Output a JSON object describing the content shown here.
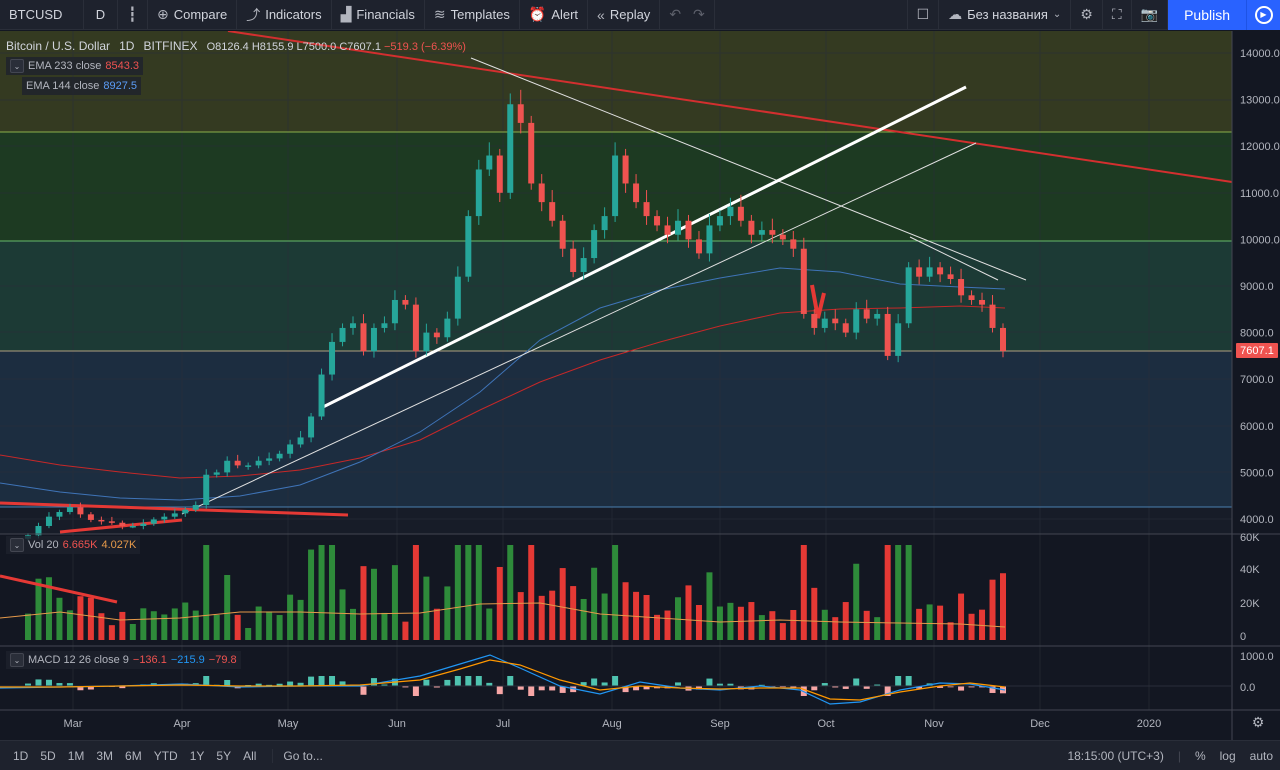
{
  "toolbar": {
    "symbol": "BTCUSD",
    "interval": "D",
    "compare": "Compare",
    "indicators": "Indicators",
    "financials": "Financials",
    "templates": "Templates",
    "alert": "Alert",
    "replay": "Replay",
    "layout_name": "Без названия",
    "publish": "Publish"
  },
  "legend": {
    "title": "Bitcoin / U.S. Dollar",
    "interval": "1D",
    "exchange": "BITFINEX",
    "open": "O8126.4",
    "high": "H8155.9",
    "low": "L7500.0",
    "close": "C7607.1",
    "change": "−519.3 (−6.39%)"
  },
  "indicators": {
    "ema233": {
      "label": "EMA 233 close",
      "value": "8543.3",
      "color": "#ef5350"
    },
    "ema144": {
      "label": "EMA 144 close",
      "value": "8927.5",
      "color": "#5b9cf6"
    },
    "vol": {
      "label": "Vol 20",
      "v1": "6.665K",
      "v2": "4.027K"
    },
    "macd": {
      "label": "MACD 12 26 close 9",
      "v1": "−136.1",
      "v2": "−215.9",
      "v3": "−79.8"
    }
  },
  "price_axis": [
    "14000.0",
    "13000.0",
    "12000.0",
    "11000.0",
    "10000.0",
    "9000.0",
    "8000.0",
    "7000.0",
    "6000.0",
    "5000.0",
    "4000.0"
  ],
  "last_price": "7607.1",
  "vol_axis": [
    "60K",
    "40K",
    "20K",
    "0"
  ],
  "macd_axis": [
    "1000.0",
    "0.0"
  ],
  "time_axis": [
    "Mar",
    "Apr",
    "May",
    "Jun",
    "Jul",
    "Aug",
    "Sep",
    "Oct",
    "Nov",
    "Dec",
    "2020"
  ],
  "bottom": {
    "ranges": [
      "1D",
      "5D",
      "1M",
      "3M",
      "6M",
      "YTD",
      "1Y",
      "5Y",
      "All"
    ],
    "goto": "Go to...",
    "time": "18:15:00 (UTC+3)",
    "percent": "%",
    "log": "log",
    "auto": "auto"
  },
  "colors": {
    "up": "#26a69a",
    "down": "#ef5350",
    "vol_up": "#26a69a",
    "vol_down": "#ef5350",
    "bg": "#131722",
    "accent": "#2962ff"
  },
  "chart_data": {
    "type": "candlestick",
    "series": [
      {
        "name": "BTCUSD",
        "close": [
          3650,
          3850,
          4050,
          4150,
          4250,
          4100,
          3980,
          3950,
          3920,
          3850,
          3850,
          3900,
          3990,
          4050,
          4120,
          4200,
          4300,
          4950,
          5000,
          5250,
          5150,
          5150,
          5250,
          5300,
          5400,
          5600,
          5750,
          6200,
          7100,
          7800,
          8100,
          8200,
          7600,
          8100,
          8200,
          8700,
          8600,
          7600,
          8000,
          7900,
          8300,
          9200,
          10500,
          11500,
          11800,
          11000,
          12900,
          12500,
          11200,
          10800,
          10400,
          9800,
          9300,
          9600,
          10200,
          10500,
          11800,
          11200,
          10800,
          10500,
          10300,
          10100,
          10400,
          10000,
          9700,
          10300,
          10500,
          10700,
          10400,
          10100,
          10200,
          10100,
          10000,
          9800,
          8400,
          8100,
          8300,
          8200,
          8000,
          8500,
          8300,
          8400,
          7500,
          8200,
          9400,
          9200,
          9400,
          9250,
          9150,
          8800,
          8700,
          8600,
          8100,
          7607
        ]
      }
    ]
  }
}
